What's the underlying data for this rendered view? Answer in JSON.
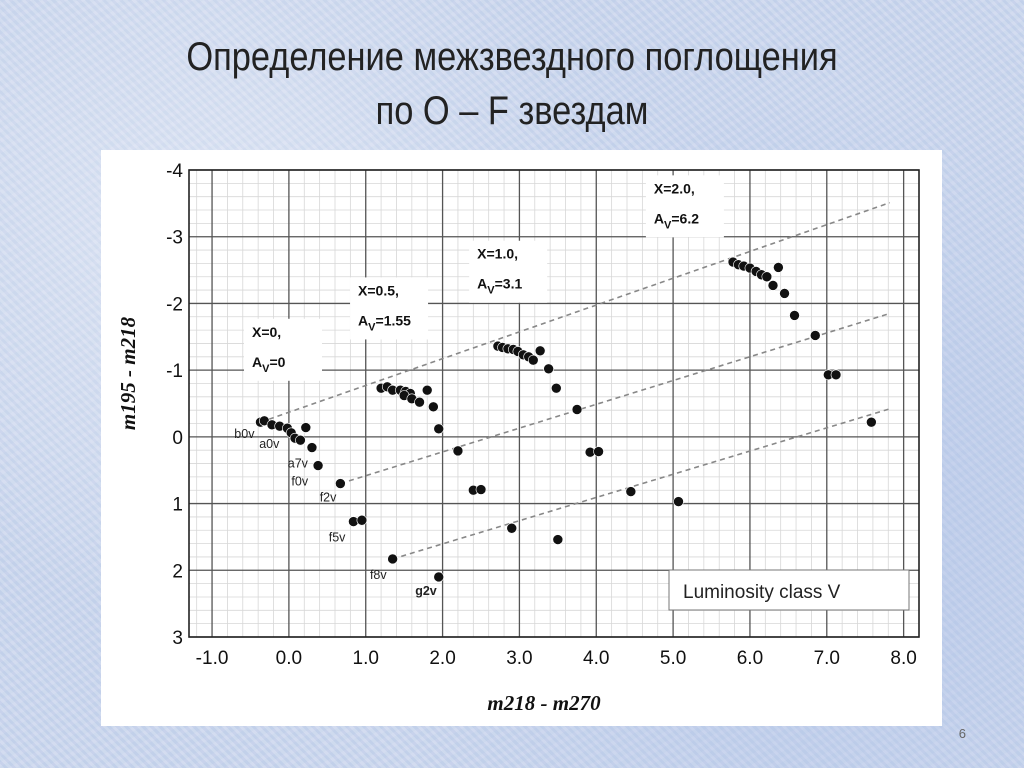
{
  "slide": {
    "title_line1": "Определение межзвездного поглощения",
    "title_line2": "по О – F звездам",
    "page_number": "6"
  },
  "chart_data": {
    "type": "scatter",
    "xlabel": "m218 - m270",
    "ylabel": "m195 - m218",
    "xlim": [
      -1.3,
      8.2
    ],
    "ylim": [
      -4,
      3
    ],
    "y_inverted": true,
    "x_ticks": [
      -1.0,
      0.0,
      1.0,
      2.0,
      3.0,
      4.0,
      5.0,
      6.0,
      7.0,
      8.0
    ],
    "x_tick_labels": [
      "-1.0",
      "0.0",
      "1.0",
      "2.0",
      "3.0",
      "4.0",
      "5.0",
      "6.0",
      "7.0",
      "8.0"
    ],
    "y_ticks": [
      -4,
      -3,
      -2,
      -1,
      0,
      1,
      2,
      3
    ],
    "y_tick_labels": [
      "-4",
      "-3",
      "-2",
      "-1",
      "0",
      "1",
      "2",
      "3"
    ],
    "grid": true,
    "legend_text": "Luminosity class V",
    "legend_position": "bottom-right",
    "points": [
      {
        "x": -0.37,
        "y": -0.22
      },
      {
        "x": -0.32,
        "y": -0.24
      },
      {
        "x": -0.22,
        "y": -0.18
      },
      {
        "x": -0.12,
        "y": -0.16
      },
      {
        "x": -0.02,
        "y": -0.13
      },
      {
        "x": 0.03,
        "y": -0.06
      },
      {
        "x": 0.08,
        "y": 0.02
      },
      {
        "x": 0.15,
        "y": 0.05
      },
      {
        "x": 0.22,
        "y": -0.14
      },
      {
        "x": 0.3,
        "y": 0.16
      },
      {
        "x": 0.38,
        "y": 0.43
      },
      {
        "x": 0.67,
        "y": 0.7
      },
      {
        "x": 0.84,
        "y": 1.27
      },
      {
        "x": 0.95,
        "y": 1.25
      },
      {
        "x": 1.35,
        "y": 1.83
      },
      {
        "x": 1.95,
        "y": 2.1
      },
      {
        "x": 1.2,
        "y": -0.73
      },
      {
        "x": 1.28,
        "y": -0.75
      },
      {
        "x": 1.35,
        "y": -0.7
      },
      {
        "x": 1.45,
        "y": -0.7
      },
      {
        "x": 1.52,
        "y": -0.68
      },
      {
        "x": 1.58,
        "y": -0.65
      },
      {
        "x": 1.5,
        "y": -0.62
      },
      {
        "x": 1.6,
        "y": -0.57
      },
      {
        "x": 1.7,
        "y": -0.52
      },
      {
        "x": 1.8,
        "y": -0.7
      },
      {
        "x": 1.88,
        "y": -0.45
      },
      {
        "x": 1.95,
        "y": -0.12
      },
      {
        "x": 2.2,
        "y": 0.21
      },
      {
        "x": 2.4,
        "y": 0.8
      },
      {
        "x": 2.5,
        "y": 0.79
      },
      {
        "x": 2.9,
        "y": 1.37
      },
      {
        "x": 3.5,
        "y": 1.54
      },
      {
        "x": 2.72,
        "y": -1.36
      },
      {
        "x": 2.78,
        "y": -1.34
      },
      {
        "x": 2.85,
        "y": -1.32
      },
      {
        "x": 2.92,
        "y": -1.31
      },
      {
        "x": 2.98,
        "y": -1.28
      },
      {
        "x": 3.05,
        "y": -1.23
      },
      {
        "x": 3.12,
        "y": -1.2
      },
      {
        "x": 3.18,
        "y": -1.15
      },
      {
        "x": 3.27,
        "y": -1.29
      },
      {
        "x": 3.38,
        "y": -1.02
      },
      {
        "x": 3.48,
        "y": -0.73
      },
      {
        "x": 3.75,
        "y": -0.41
      },
      {
        "x": 3.92,
        "y": 0.23
      },
      {
        "x": 4.03,
        "y": 0.22
      },
      {
        "x": 4.45,
        "y": 0.82
      },
      {
        "x": 5.07,
        "y": 0.97
      },
      {
        "x": 5.78,
        "y": -2.62
      },
      {
        "x": 5.85,
        "y": -2.58
      },
      {
        "x": 5.92,
        "y": -2.56
      },
      {
        "x": 6.0,
        "y": -2.53
      },
      {
        "x": 6.08,
        "y": -2.48
      },
      {
        "x": 6.15,
        "y": -2.43
      },
      {
        "x": 6.22,
        "y": -2.4
      },
      {
        "x": 6.3,
        "y": -2.27
      },
      {
        "x": 6.37,
        "y": -2.54
      },
      {
        "x": 6.45,
        "y": -2.15
      },
      {
        "x": 6.58,
        "y": -1.82
      },
      {
        "x": 6.85,
        "y": -1.52
      },
      {
        "x": 7.02,
        "y": -0.93
      },
      {
        "x": 7.12,
        "y": -0.93
      },
      {
        "x": 7.58,
        "y": -0.22
      }
    ],
    "reference_lines": [
      {
        "x0": -0.37,
        "y0": -0.22,
        "x1": 7.82,
        "y1": -3.51
      },
      {
        "x0": 0.67,
        "y0": 0.7,
        "x1": 7.82,
        "y1": -1.85
      },
      {
        "x0": 1.35,
        "y0": 1.83,
        "x1": 7.82,
        "y1": -0.42
      }
    ],
    "point_labels": [
      {
        "text": "b0v",
        "x": -0.37,
        "y": -0.22,
        "anchor": "end",
        "dx": -6,
        "dy": 16
      },
      {
        "text": "a0v",
        "x": -0.02,
        "y": -0.13,
        "anchor": "end",
        "dx": -8,
        "dy": 20
      },
      {
        "text": "a7v",
        "x": 0.3,
        "y": 0.16,
        "anchor": "end",
        "dx": -4,
        "dy": 20
      },
      {
        "text": "f0v",
        "x": 0.38,
        "y": 0.43,
        "anchor": "end",
        "dx": -10,
        "dy": 20
      },
      {
        "text": "f2v",
        "x": 0.67,
        "y": 0.7,
        "anchor": "end",
        "dx": -4,
        "dy": 18
      },
      {
        "text": "f5v",
        "x": 0.84,
        "y": 1.27,
        "anchor": "end",
        "dx": -8,
        "dy": 20
      },
      {
        "text": "f8v",
        "x": 1.35,
        "y": 1.83,
        "anchor": "end",
        "dx": -6,
        "dy": 20
      },
      {
        "text": "g2v",
        "x": 1.95,
        "y": 2.1,
        "anchor": "end",
        "dx": -2,
        "dy": 18,
        "bold": true
      }
    ],
    "annotations": [
      {
        "line1": "X=0,",
        "line2": "A",
        "sub": "V",
        "val": "=0",
        "x": -0.48,
        "y": -1.5
      },
      {
        "line1": "X=0.5,",
        "line2": "A",
        "sub": "V",
        "val": "=1.55",
        "x": 0.9,
        "y": -2.12
      },
      {
        "line1": "X=1.0,",
        "line2": "A",
        "sub": "V",
        "val": "=3.1",
        "x": 2.45,
        "y": -2.67
      },
      {
        "line1": "X=2.0,",
        "line2": "A",
        "sub": "V",
        "val": "=6.2",
        "x": 4.75,
        "y": -3.65
      }
    ]
  }
}
